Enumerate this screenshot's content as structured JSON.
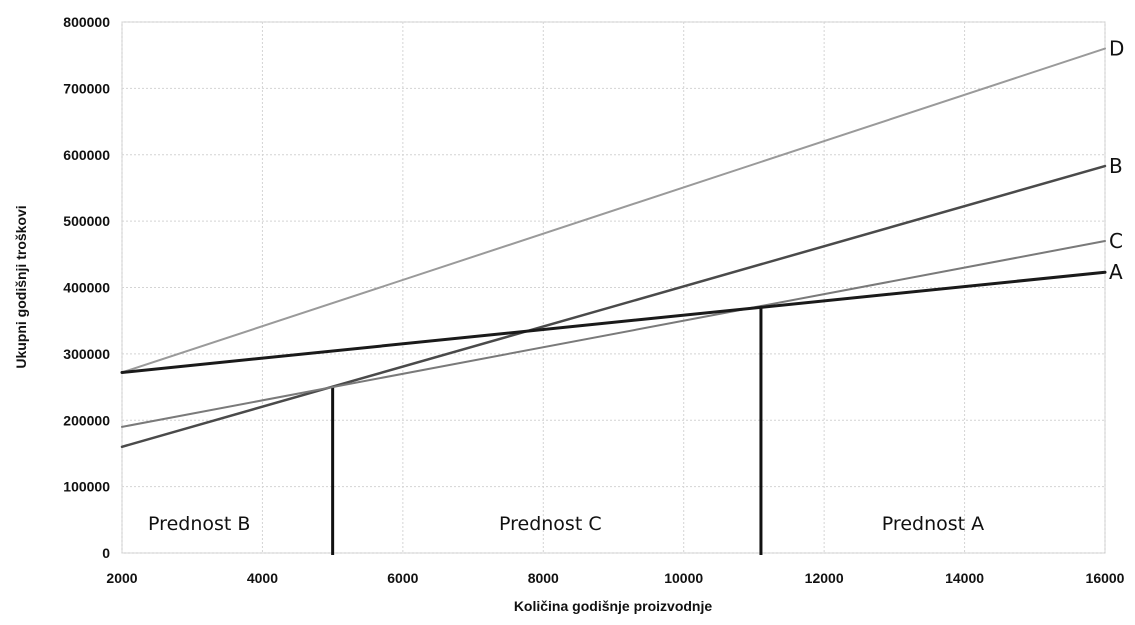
{
  "chart_data": {
    "type": "line",
    "title": "",
    "xlabel": "Količina godišnje proizvodnje",
    "ylabel": "Ukupni godišnji troškovi",
    "xlim": [
      2000,
      16000
    ],
    "ylim": [
      0,
      800000
    ],
    "x_ticks": [
      2000,
      4000,
      6000,
      8000,
      10000,
      12000,
      14000,
      16000
    ],
    "y_ticks": [
      0,
      100000,
      200000,
      300000,
      400000,
      500000,
      600000,
      700000,
      800000
    ],
    "grid": true,
    "series": [
      {
        "name": "D",
        "x": [
          2000,
          16000
        ],
        "y": [
          272000,
          760000
        ],
        "color": "#9a9a9a",
        "width": 2
      },
      {
        "name": "B",
        "x": [
          2000,
          16000
        ],
        "y": [
          160000,
          583000
        ],
        "color": "#4a4a4a",
        "width": 2.5
      },
      {
        "name": "C",
        "x": [
          2000,
          16000
        ],
        "y": [
          190000,
          470000
        ],
        "color": "#7a7a7a",
        "width": 2
      },
      {
        "name": "A",
        "x": [
          2000,
          16000
        ],
        "y": [
          272000,
          423000
        ],
        "color": "#1a1a1a",
        "width": 3
      }
    ],
    "vlines": [
      5000,
      11100
    ],
    "regions": [
      {
        "label": "Prednost B",
        "x": 3100,
        "y": 45000
      },
      {
        "label": "Prednost C",
        "x": 8100,
        "y": 45000
      },
      {
        "label": "Prednost A",
        "x": 13550,
        "y": 45000
      }
    ]
  }
}
